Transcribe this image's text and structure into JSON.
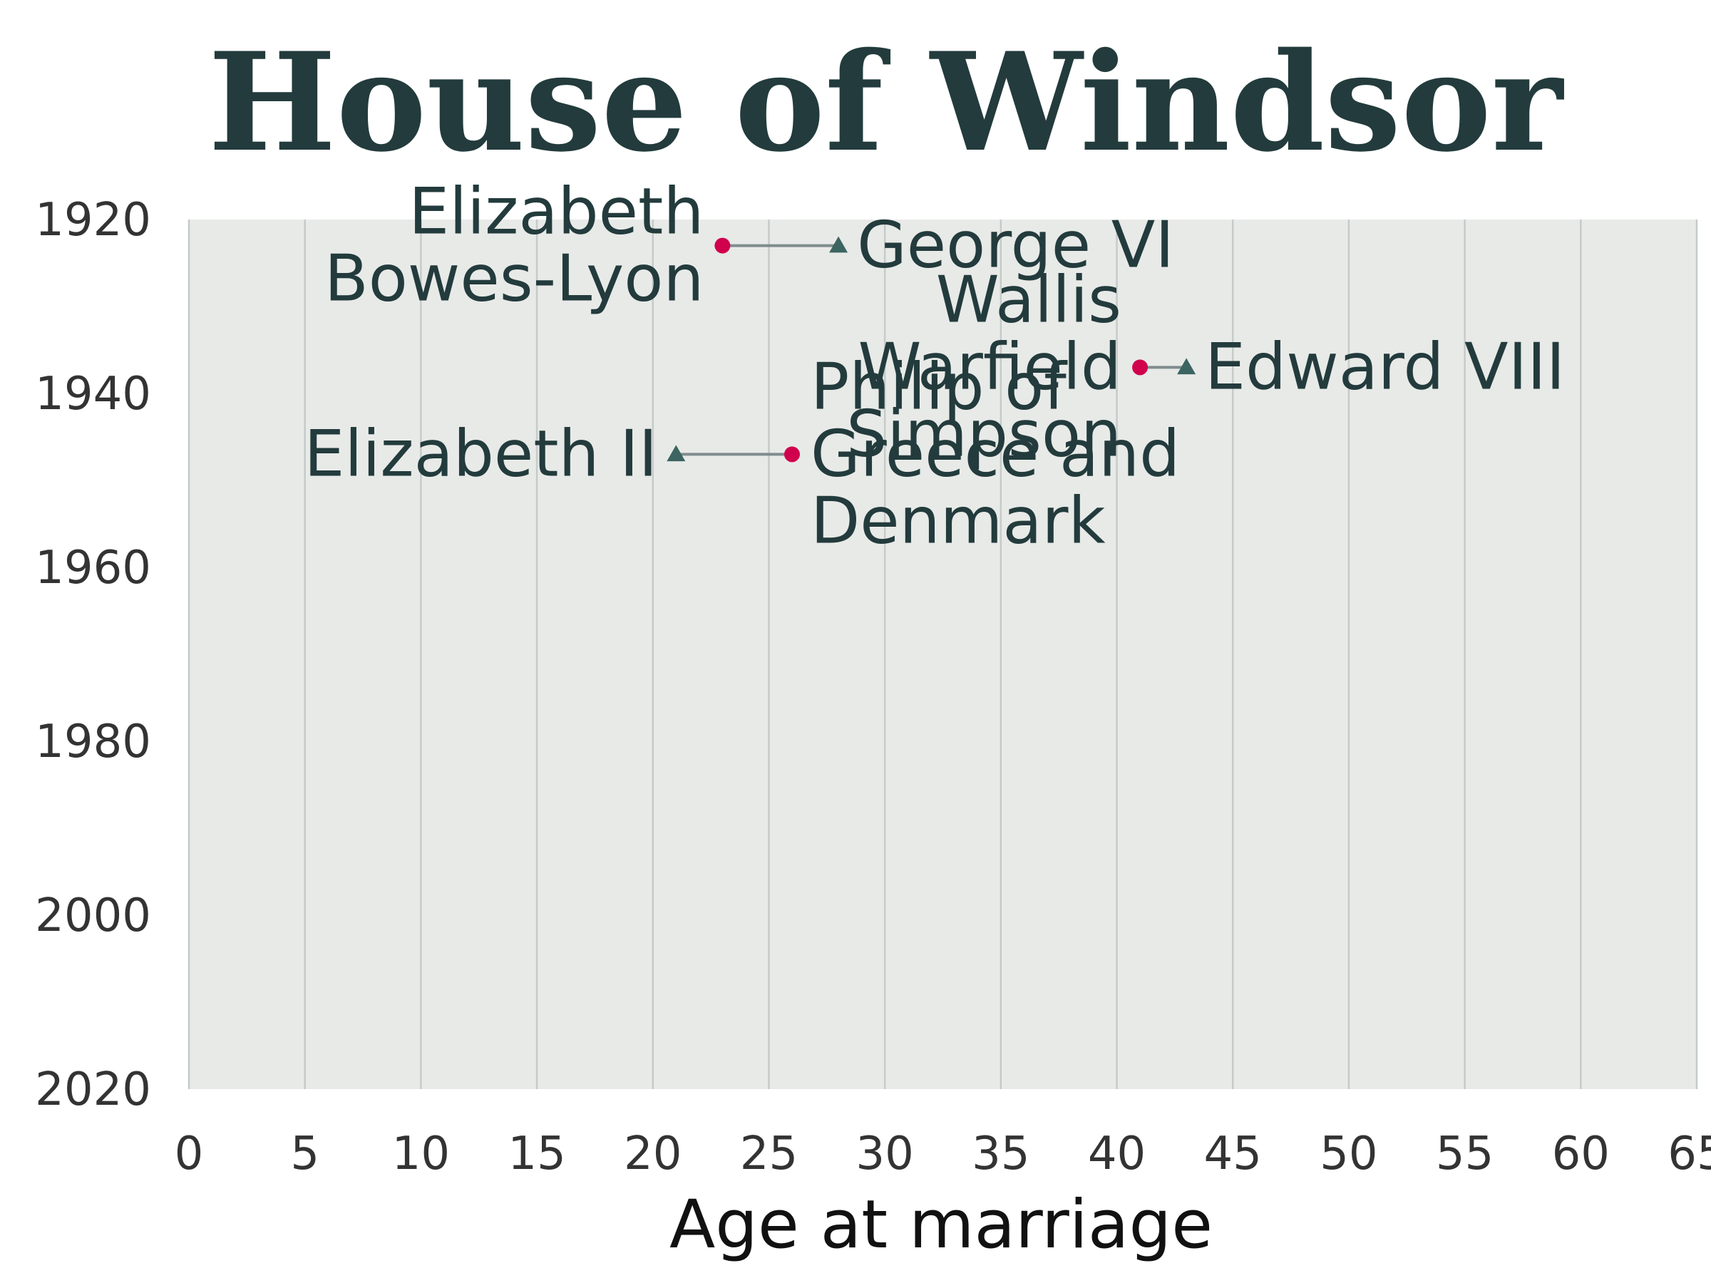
{
  "chart_data": {
    "type": "dumbbell",
    "title": "House of Windsor",
    "xlabel": "Age at marriage",
    "ylabel": "",
    "xlim": [
      0,
      65
    ],
    "ylim": [
      1920,
      2020
    ],
    "y_inverted": true,
    "x_ticks": [
      "0",
      "5",
      "10",
      "15",
      "20",
      "25",
      "30",
      "35",
      "40",
      "45",
      "50",
      "55",
      "60",
      "65"
    ],
    "y_ticks": [
      "1920",
      "1940",
      "1960",
      "1980",
      "2000",
      "2020"
    ],
    "grid": "vertical",
    "colors": {
      "title": "#233b3c",
      "plot_bg": "#e8eae8",
      "grid": "#c5cbc9",
      "connector": "#7f8c8d",
      "dot": "#d1004d",
      "triangle": "#3c6461",
      "annotation": "#233b3c"
    },
    "marriages": [
      {
        "year": 1923,
        "royal": "George VI",
        "royal_age": 28,
        "spouse": "Elizabeth Bowes-Lyon",
        "spouse_age": 23
      },
      {
        "year": 1937,
        "royal": "Edward VIII",
        "royal_age": 43,
        "spouse": "Wallis Warfield Simpson",
        "spouse_age": 41
      },
      {
        "year": 1947,
        "royal": "Elizabeth II",
        "royal_age": 21,
        "spouse": "Philip of Greece and Denmark",
        "spouse_age": 26
      }
    ]
  }
}
